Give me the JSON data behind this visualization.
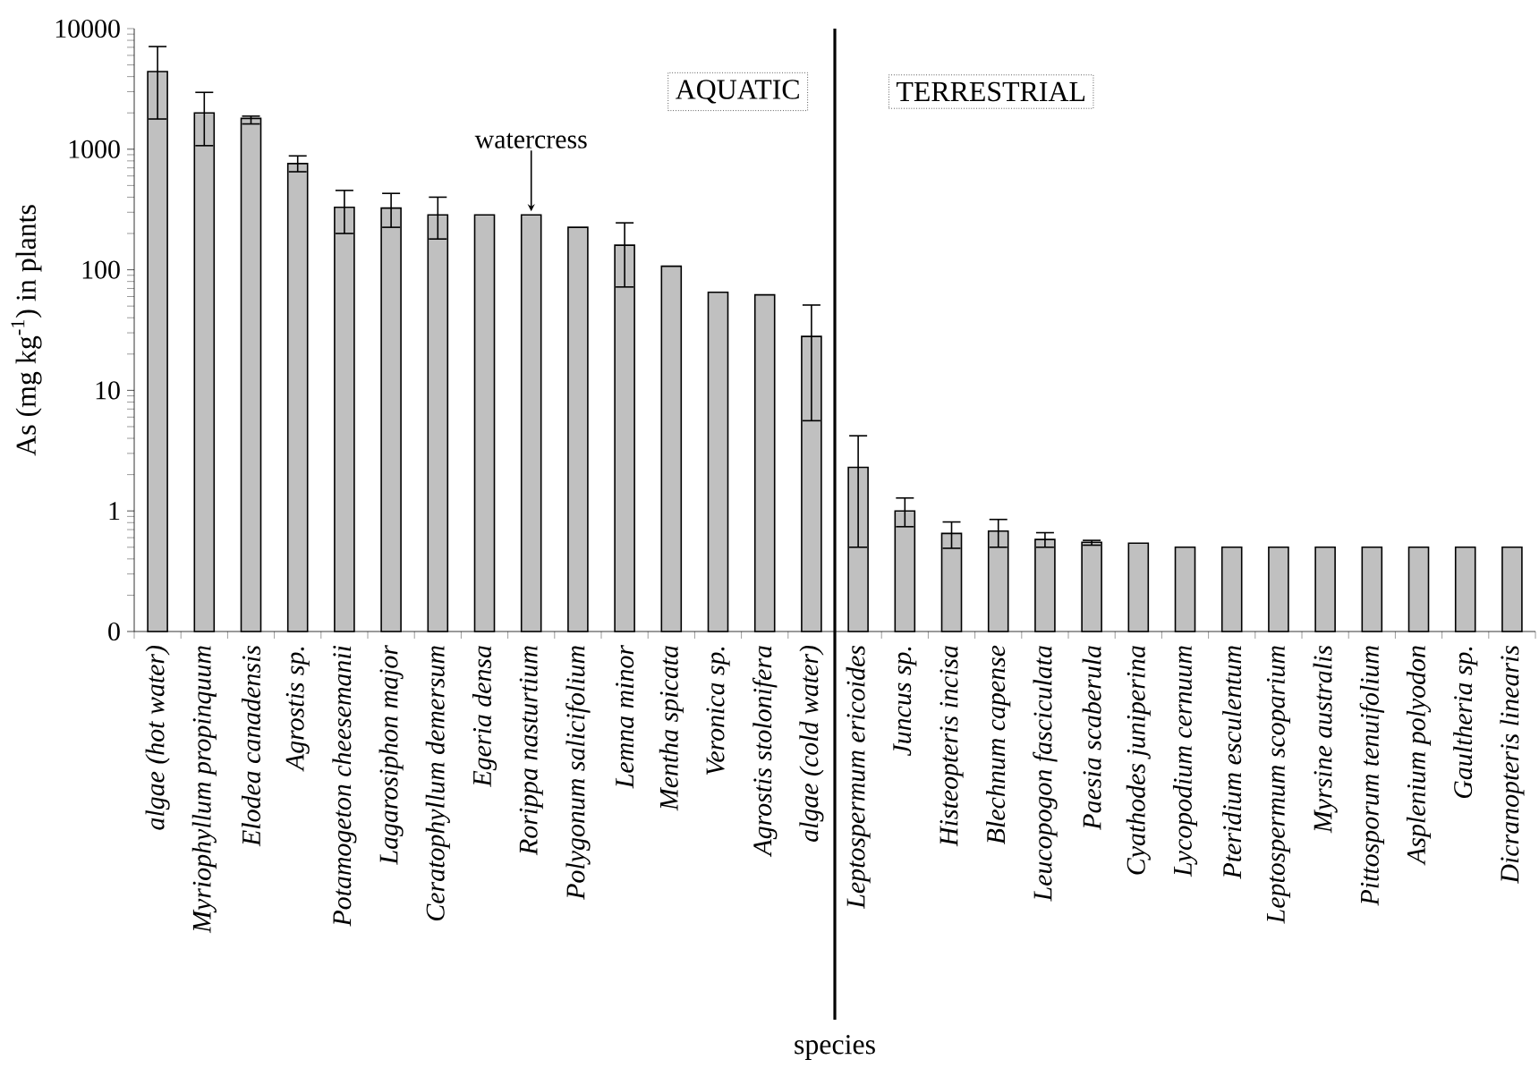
{
  "chart_data": {
    "type": "bar",
    "xlabel": "species",
    "ylabel": "As (mg kg$^{-1}$) in plants",
    "categories": [
      "algae (hot water)",
      "Myriophyllum propinquum",
      "Elodea canadensis",
      "Agrostis sp.",
      "Potamogeton cheesemanii",
      "Lagarosiphon major",
      "Ceratophyllum demersum",
      "Egeria densa",
      "Rorippa nasturtium",
      "Polygonum salicifolium",
      "Lemna minor",
      "Mentha spicata",
      "Veronica sp.",
      "Agrostis stolonifera",
      "algae (cold water)",
      "Leptospermum ericoides",
      "Juncus sp.",
      "Histeopteris incisa",
      "Blechnum capense",
      "Leucopogon fasciculata",
      "Paesia scaberula",
      "Cyathodes juniperina",
      "Lycopodium cernuum",
      "Pteridium esculentum",
      "Leptospermum scoparium",
      "Myrsine australis",
      "Pittosporum tenuifolium",
      "Asplenium polyodon",
      "Gaultheria sp.",
      "Dicranopteris linearis"
    ],
    "values": [
      4400,
      2000,
      1800,
      760,
      330,
      325,
      285,
      285,
      285,
      225,
      160,
      107,
      65,
      62,
      28,
      2.3,
      1.0,
      0.65,
      0.68,
      0.58,
      0.55,
      0.54,
      0.5,
      0.5,
      0.5,
      0.5,
      0.5,
      0.5,
      0.5,
      0.5
    ],
    "errors": [
      [
        1780,
        7100
      ],
      [
        1070,
        2960
      ],
      [
        1620,
        1880
      ],
      [
        650,
        880
      ],
      [
        200,
        455
      ],
      [
        225,
        430
      ],
      [
        180,
        400
      ],
      null,
      null,
      null,
      [
        72,
        245
      ],
      null,
      null,
      null,
      [
        5.6,
        51
      ],
      [
        0.5,
        4.2
      ],
      [
        0.74,
        1.28
      ],
      [
        0.49,
        0.81
      ],
      [
        0.5,
        0.85
      ],
      [
        0.5,
        0.66
      ],
      [
        0.52,
        0.57
      ],
      null,
      null,
      null,
      null,
      null,
      null,
      null,
      null,
      null
    ],
    "color": "#c0c0c0",
    "log": true,
    "ylim": [
      0.1,
      10000
    ],
    "yticks": [
      {
        "value": 0.1,
        "label": "0"
      },
      1,
      10,
      100,
      1000,
      10000
    ],
    "annotations": [
      "AQUATIC",
      "TERRESTRIAL",
      {
        "text": "watercress",
        "x": "Rorippa nasturtium",
        "y": 285
      }
    ]
  }
}
